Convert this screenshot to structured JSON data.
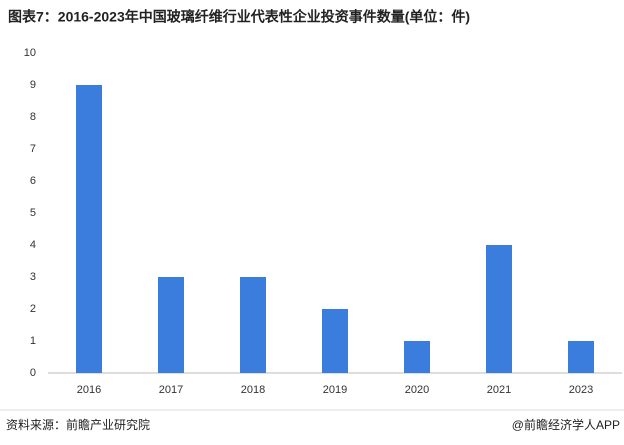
{
  "chart_data": {
    "type": "bar",
    "title": "图表7：2016-2023年中国玻璃纤维行业代表性企业投资事件数量(单位：件)",
    "categories": [
      "2016",
      "2017",
      "2018",
      "2019",
      "2020",
      "2021",
      "2023"
    ],
    "values": [
      9,
      3,
      3,
      2,
      1,
      4,
      1
    ],
    "color": "#3b7ddd",
    "ylim": [
      0,
      10
    ],
    "yticks": [
      0,
      1,
      2,
      3,
      4,
      5,
      6,
      7,
      8,
      9,
      10
    ],
    "grid": false,
    "source": "资料来源：前瞻产业研究院",
    "credit": "@前瞻经济学人APP"
  }
}
